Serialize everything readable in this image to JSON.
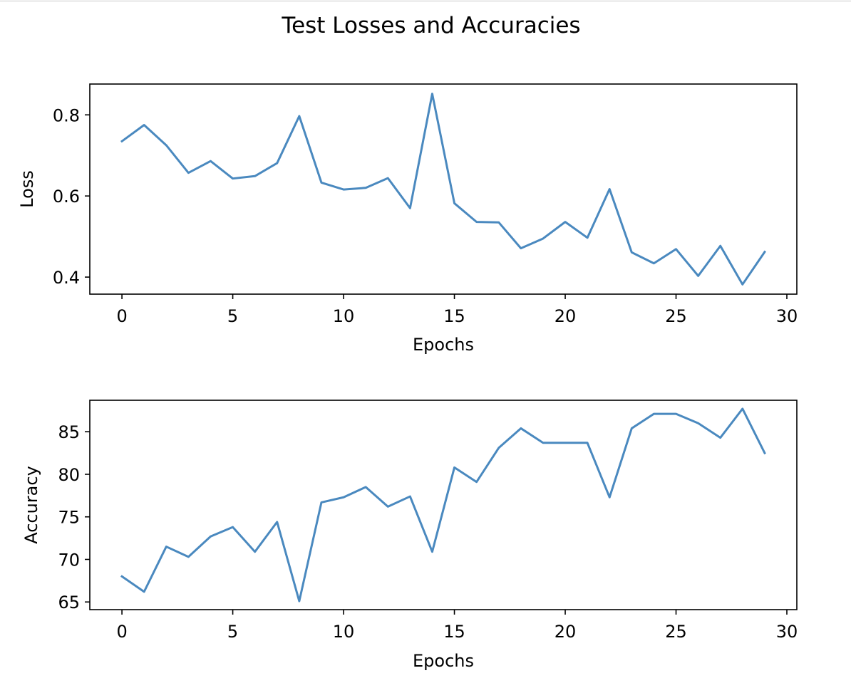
{
  "figure": {
    "title": "Test Losses and Accuracies",
    "line_color": "#4a89bf"
  },
  "chart_data": [
    {
      "type": "line",
      "title": "",
      "xlabel": "Epochs",
      "ylabel": "Loss",
      "xlim": [
        -1.45,
        30.45
      ],
      "ylim": [
        0.358,
        0.876
      ],
      "xticks": [
        0,
        5,
        10,
        15,
        20,
        25,
        30
      ],
      "xtick_labels": [
        "0",
        "5",
        "10",
        "15",
        "20",
        "25",
        "30"
      ],
      "yticks": [
        0.4,
        0.6,
        0.8
      ],
      "ytick_labels": [
        "0.4",
        "0.6",
        "0.8"
      ],
      "grid": false,
      "series": [
        {
          "x": [
            0,
            1,
            2,
            3,
            4,
            5,
            6,
            7,
            8,
            9,
            10,
            11,
            12,
            13,
            14,
            15,
            16,
            17,
            18,
            19,
            20,
            21,
            22,
            23,
            24,
            25,
            26,
            27,
            28,
            29
          ],
          "values": [
            0.735,
            0.775,
            0.725,
            0.657,
            0.686,
            0.643,
            0.649,
            0.681,
            0.797,
            0.633,
            0.616,
            0.62,
            0.644,
            0.57,
            0.852,
            0.582,
            0.536,
            0.535,
            0.471,
            0.495,
            0.536,
            0.497,
            0.617,
            0.461,
            0.434,
            0.469,
            0.403,
            0.477,
            0.382,
            0.462
          ]
        }
      ]
    },
    {
      "type": "line",
      "title": "",
      "xlabel": "Epochs",
      "ylabel": "Accuracy",
      "xlim": [
        -1.45,
        30.45
      ],
      "ylim": [
        64.1,
        88.7
      ],
      "xticks": [
        0,
        5,
        10,
        15,
        20,
        25,
        30
      ],
      "xtick_labels": [
        "0",
        "5",
        "10",
        "15",
        "20",
        "25",
        "30"
      ],
      "yticks": [
        65,
        70,
        75,
        80,
        85
      ],
      "ytick_labels": [
        "65",
        "70",
        "75",
        "80",
        "85"
      ],
      "grid": false,
      "series": [
        {
          "x": [
            0,
            1,
            2,
            3,
            4,
            5,
            6,
            7,
            8,
            9,
            10,
            11,
            12,
            13,
            14,
            15,
            16,
            17,
            18,
            19,
            20,
            21,
            22,
            23,
            24,
            25,
            26,
            27,
            28,
            29
          ],
          "values": [
            68.0,
            66.2,
            71.5,
            70.3,
            72.7,
            73.8,
            70.9,
            74.4,
            65.1,
            76.7,
            77.3,
            78.5,
            76.2,
            77.4,
            70.9,
            80.8,
            79.1,
            83.1,
            85.4,
            83.7,
            83.7,
            83.7,
            77.3,
            85.4,
            87.1,
            87.1,
            86.0,
            84.3,
            87.7,
            82.5
          ]
        }
      ]
    }
  ]
}
